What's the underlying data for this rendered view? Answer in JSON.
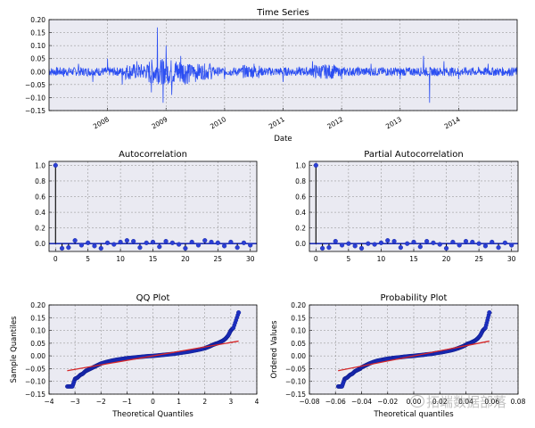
{
  "chart_data": [
    {
      "type": "line",
      "title": "Time Series",
      "xlabel": "Date",
      "ylabel": "",
      "x_range": [
        "2007-01-01",
        "2014-12-31"
      ],
      "ylim": [
        -0.15,
        0.2
      ],
      "y_ticks": [
        "−0.15",
        "−0.10",
        "−0.05",
        "0.00",
        "0.05",
        "0.10",
        "0.15",
        "0.20"
      ],
      "x_ticks": [
        "2008",
        "2009",
        "2010",
        "2011",
        "2012",
        "2013",
        "2014"
      ],
      "grid": true,
      "color": "#2b4ef2",
      "series": [
        {
          "x": [
            2007.0,
            2007.25,
            2007.5,
            2007.75,
            2008.0,
            2008.25,
            2008.5,
            2008.75,
            2008.85,
            2008.95,
            2009.0,
            2009.1,
            2009.25,
            2009.5,
            2009.75,
            2010.0,
            2010.5,
            2011.0,
            2011.5,
            2012.0,
            2012.5,
            2013.0,
            2013.4,
            2013.5,
            2013.75,
            2014.0,
            2014.5,
            2015.0
          ],
          "y": [
            0.01,
            -0.02,
            0.03,
            -0.04,
            0.05,
            -0.05,
            0.04,
            -0.08,
            0.17,
            -0.12,
            0.1,
            -0.09,
            0.06,
            -0.04,
            0.03,
            -0.03,
            0.03,
            -0.04,
            0.04,
            -0.03,
            0.03,
            -0.03,
            0.06,
            -0.12,
            0.04,
            -0.03,
            0.03,
            0.0
          ]
        }
      ]
    },
    {
      "type": "stem",
      "title": "Autocorrelation",
      "xlim": [
        -1,
        31
      ],
      "ylim": [
        -0.1,
        1.05
      ],
      "x_ticks": [
        "0",
        "5",
        "10",
        "15",
        "20",
        "25",
        "30"
      ],
      "y_ticks": [
        "0.0",
        "0.2",
        "0.4",
        "0.6",
        "0.8",
        "1.0"
      ],
      "lags": [
        0,
        1,
        2,
        3,
        4,
        5,
        6,
        7,
        8,
        9,
        10,
        11,
        12,
        13,
        14,
        15,
        16,
        17,
        18,
        19,
        20,
        21,
        22,
        23,
        24,
        25,
        26,
        27,
        28,
        29,
        30
      ],
      "values": [
        1.0,
        -0.06,
        -0.05,
        0.04,
        -0.02,
        0.01,
        -0.03,
        -0.06,
        0.01,
        -0.01,
        0.02,
        0.04,
        0.03,
        -0.05,
        0.01,
        0.02,
        -0.04,
        0.03,
        0.01,
        -0.01,
        -0.06,
        0.02,
        -0.02,
        0.04,
        0.02,
        0.01,
        -0.03,
        0.02,
        -0.05,
        0.01,
        -0.02
      ]
    },
    {
      "type": "stem",
      "title": "Partial Autocorrelation",
      "xlim": [
        -1,
        31
      ],
      "ylim": [
        -0.1,
        1.05
      ],
      "x_ticks": [
        "0",
        "5",
        "10",
        "15",
        "20",
        "25",
        "30"
      ],
      "y_ticks": [
        "0.0",
        "0.2",
        "0.4",
        "0.6",
        "0.8",
        "1.0"
      ],
      "lags": [
        0,
        1,
        2,
        3,
        4,
        5,
        6,
        7,
        8,
        9,
        10,
        11,
        12,
        13,
        14,
        15,
        16,
        17,
        18,
        19,
        20,
        21,
        22,
        23,
        24,
        25,
        26,
        27,
        28,
        29,
        30
      ],
      "values": [
        1.0,
        -0.06,
        -0.05,
        0.03,
        -0.02,
        0.0,
        -0.03,
        -0.06,
        0.0,
        -0.01,
        0.01,
        0.04,
        0.03,
        -0.05,
        0.0,
        0.02,
        -0.04,
        0.03,
        0.01,
        -0.01,
        -0.06,
        0.02,
        -0.02,
        0.03,
        0.02,
        0.0,
        -0.03,
        0.02,
        -0.05,
        0.01,
        -0.02
      ]
    },
    {
      "type": "scatter",
      "title": "QQ Plot",
      "xlabel": "Theoretical Quantiles",
      "ylabel": "Sample Quantiles",
      "xlim": [
        -4,
        4
      ],
      "ylim": [
        -0.15,
        0.2
      ],
      "x_ticks": [
        "−4",
        "−3",
        "−2",
        "−1",
        "0",
        "1",
        "2",
        "3",
        "4"
      ],
      "y_ticks": [
        "−0.15",
        "−0.10",
        "−0.05",
        "0.00",
        "0.05",
        "0.10",
        "0.15",
        "0.20"
      ],
      "points_x": [
        -3.3,
        -3.1,
        -3.0,
        -2.9,
        -2.8,
        -2.7,
        -2.6,
        -2.5,
        -2.4,
        -2.3,
        -2.2,
        -2.1,
        -2.0,
        -1.8,
        -1.6,
        -1.4,
        -1.2,
        -1.0,
        -0.8,
        -0.6,
        -0.4,
        -0.2,
        0.0,
        0.2,
        0.4,
        0.6,
        0.8,
        1.0,
        1.2,
        1.4,
        1.6,
        1.8,
        2.0,
        2.1,
        2.2,
        2.3,
        2.4,
        2.5,
        2.6,
        2.7,
        2.8,
        2.9,
        3.0,
        3.1,
        3.3
      ],
      "points_y": [
        -0.12,
        -0.12,
        -0.09,
        -0.085,
        -0.075,
        -0.07,
        -0.06,
        -0.055,
        -0.05,
        -0.045,
        -0.04,
        -0.035,
        -0.03,
        -0.024,
        -0.019,
        -0.015,
        -0.012,
        -0.009,
        -0.007,
        -0.005,
        -0.003,
        -0.001,
        0.0,
        0.002,
        0.004,
        0.006,
        0.008,
        0.011,
        0.014,
        0.017,
        0.021,
        0.025,
        0.03,
        0.034,
        0.038,
        0.043,
        0.047,
        0.05,
        0.055,
        0.06,
        0.068,
        0.08,
        0.1,
        0.11,
        0.17
      ],
      "fit_line": {
        "x": [
          -3.3,
          3.3
        ],
        "y": [
          -0.058,
          0.058
        ],
        "color": "#d62728"
      }
    },
    {
      "type": "scatter",
      "title": "Probability Plot",
      "xlabel": "Theoretical quantiles",
      "ylabel": "Ordered Values",
      "xlim": [
        -0.08,
        0.08
      ],
      "ylim": [
        -0.15,
        0.2
      ],
      "x_ticks": [
        "−0.08",
        "−0.06",
        "−0.04",
        "−0.02",
        "0.00",
        "0.02",
        "0.04",
        "0.06",
        "0.08"
      ],
      "y_ticks": [
        "−0.15",
        "−0.10",
        "−0.05",
        "0.00",
        "0.05",
        "0.10",
        "0.15",
        "0.20"
      ],
      "points_x": [
        -0.058,
        -0.055,
        -0.053,
        -0.051,
        -0.049,
        -0.047,
        -0.045,
        -0.043,
        -0.041,
        -0.04,
        -0.038,
        -0.036,
        -0.034,
        -0.031,
        -0.028,
        -0.024,
        -0.021,
        -0.017,
        -0.014,
        -0.01,
        -0.007,
        -0.003,
        0.0,
        0.003,
        0.007,
        0.01,
        0.014,
        0.017,
        0.021,
        0.024,
        0.028,
        0.031,
        0.034,
        0.036,
        0.038,
        0.04,
        0.041,
        0.043,
        0.045,
        0.047,
        0.049,
        0.051,
        0.053,
        0.055,
        0.058
      ],
      "points_y": [
        -0.12,
        -0.12,
        -0.09,
        -0.085,
        -0.075,
        -0.07,
        -0.06,
        -0.055,
        -0.05,
        -0.045,
        -0.04,
        -0.035,
        -0.03,
        -0.024,
        -0.019,
        -0.015,
        -0.012,
        -0.009,
        -0.007,
        -0.005,
        -0.003,
        -0.001,
        0.0,
        0.002,
        0.004,
        0.006,
        0.008,
        0.011,
        0.014,
        0.017,
        0.021,
        0.025,
        0.03,
        0.034,
        0.038,
        0.043,
        0.047,
        0.05,
        0.055,
        0.06,
        0.068,
        0.08,
        0.1,
        0.11,
        0.17
      ],
      "fit_line": {
        "x": [
          -0.058,
          0.058
        ],
        "y": [
          -0.058,
          0.058
        ],
        "color": "#d62728"
      }
    }
  ],
  "watermark": "拓端数据部落"
}
